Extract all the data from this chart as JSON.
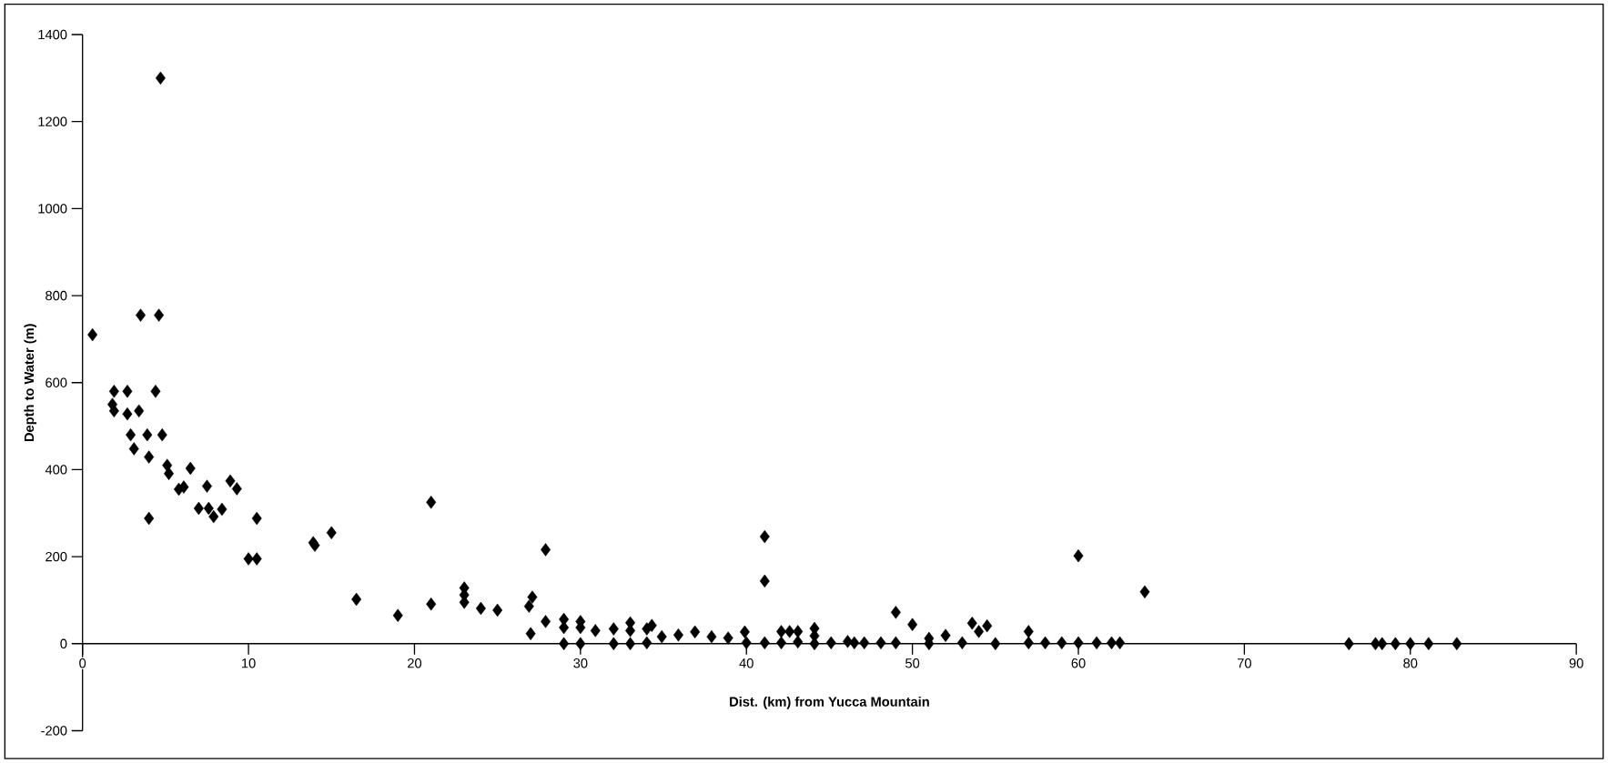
{
  "chart_data": {
    "type": "scatter",
    "xlabel": "Dist. (km) from Yucca Mountain",
    "ylabel": "Depth to Water (m)",
    "x": [
      0.6,
      4.7,
      3.5,
      4.6,
      1.9,
      2.7,
      4.4,
      1.8,
      1.9,
      2.7,
      3.4,
      2.9,
      3.9,
      4.8,
      3.1,
      4.0,
      5.1,
      5.2,
      5.8,
      6.1,
      6.5,
      7.5,
      7.0,
      7.6,
      7.9,
      8.4,
      8.9,
      9.3,
      4.0,
      10.5,
      10.0,
      10.5,
      13.9,
      14.0,
      15.0,
      16.5,
      19.0,
      21.0,
      21.0,
      23.0,
      23.0,
      23.0,
      24.0,
      25.0,
      27.1,
      26.9,
      27.0,
      27.9,
      27.9,
      29.0,
      29.0,
      29.0,
      30.0,
      30.0,
      30.0,
      30.9,
      32.0,
      32.0,
      33.0,
      33.0,
      33.0,
      34.0,
      34.3,
      34.0,
      34.9,
      35.9,
      36.9,
      37.9,
      38.9,
      39.9,
      40.0,
      41.1,
      41.1,
      41.1,
      42.1,
      42.1,
      42.6,
      43.1,
      43.1,
      44.1,
      44.1,
      44.1,
      45.1,
      46.1,
      46.5,
      47.1,
      48.1,
      49.0,
      49.0,
      50.0,
      51.0,
      51.0,
      52.0,
      53.0,
      53.6,
      54.0,
      54.5,
      55.0,
      57.0,
      57.0,
      58.0,
      59.0,
      60.0,
      60.0,
      61.1,
      62.0,
      62.5,
      64.0,
      76.3,
      77.9,
      78.3,
      79.1,
      80.0,
      81.1,
      82.8
    ],
    "values": [
      710,
      1300,
      755,
      755,
      580,
      580,
      580,
      550,
      535,
      528,
      535,
      480,
      480,
      480,
      448,
      429,
      410,
      391,
      355,
      360,
      403,
      362,
      311,
      311,
      292,
      309,
      374,
      356,
      288,
      288,
      195,
      195,
      232,
      226,
      255,
      102,
      65,
      325,
      91,
      128,
      112,
      95,
      81,
      77,
      107,
      86,
      23,
      216,
      51,
      56,
      37,
      0,
      51,
      37,
      0,
      30,
      34,
      0,
      48,
      30,
      0,
      34,
      42,
      2,
      16,
      20,
      27,
      16,
      13,
      27,
      2,
      246,
      144,
      2,
      28,
      2,
      28,
      28,
      4,
      35,
      18,
      0,
      2,
      5,
      2,
      2,
      2,
      72,
      2,
      44,
      12,
      0,
      19,
      2,
      47,
      28,
      41,
      0,
      28,
      2,
      2,
      2,
      202,
      2,
      2,
      2,
      2,
      119,
      0,
      0,
      0,
      0,
      0,
      0,
      0
    ],
    "color": "#000000",
    "marker": "diamond",
    "xlim": [
      0,
      90
    ],
    "xticks": [
      0,
      10,
      20,
      30,
      40,
      50,
      60,
      70,
      80,
      90
    ],
    "ylim": [
      -200,
      1400
    ],
    "yticks": [
      -200,
      0,
      200,
      400,
      600,
      800,
      1000,
      1200,
      1400
    ]
  }
}
